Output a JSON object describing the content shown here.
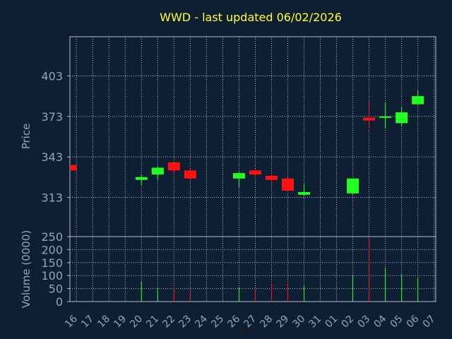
{
  "colors": {
    "background": "#0f1f33",
    "panel_border": "#b4bcc4",
    "grid": "#b4bcc4",
    "text": "#8fa6bd",
    "title": "#ffff33",
    "up": "#22ff22",
    "down": "#ff1111",
    "vol_up": "#22ff22",
    "vol_down": "#ff1111"
  },
  "chart_data": {
    "type": "candlestick",
    "title": "WWD - last updated 06/02/2026",
    "xlabel": "Day",
    "ylabel": "Price",
    "vol_ylabel": "Volume (0000)",
    "price_yticks": [
      403,
      373,
      343,
      313
    ],
    "price_ylim": [
      284,
      432
    ],
    "vol_yticks": [
      0,
      50,
      100,
      150,
      200,
      250
    ],
    "vol_ylim": [
      0,
      250
    ],
    "grid": true,
    "x_labels": [
      "16",
      "17",
      "18",
      "19",
      "20",
      "21",
      "22",
      "23",
      "24",
      "25",
      "26",
      "27",
      "28",
      "29",
      "30",
      "31",
      "01",
      "02",
      "03",
      "04",
      "05",
      "06",
      "07"
    ],
    "candles": [
      {
        "slot": 0,
        "open": 337,
        "high": 337,
        "low": 333,
        "close": 333,
        "volume": 0
      },
      {
        "slot": 4,
        "open": 326,
        "high": 330,
        "low": 322,
        "close": 328,
        "volume": 80
      },
      {
        "slot": 5,
        "open": 330,
        "high": 336,
        "low": 326,
        "close": 335,
        "volume": 50
      },
      {
        "slot": 6,
        "open": 339,
        "high": 339,
        "low": 331,
        "close": 333,
        "volume": 55
      },
      {
        "slot": 7,
        "open": 333,
        "high": 335,
        "low": 326,
        "close": 327,
        "volume": 45
      },
      {
        "slot": 10,
        "open": 327,
        "high": 332,
        "low": 320,
        "close": 331,
        "volume": 55
      },
      {
        "slot": 11,
        "open": 333,
        "high": 334,
        "low": 328,
        "close": 330,
        "volume": 45
      },
      {
        "slot": 12,
        "open": 329,
        "high": 330,
        "low": 323,
        "close": 326,
        "volume": 70
      },
      {
        "slot": 13,
        "open": 327,
        "high": 328,
        "low": 317,
        "close": 318,
        "volume": 70
      },
      {
        "slot": 14,
        "open": 315,
        "high": 323,
        "low": 314,
        "close": 317,
        "volume": 60
      },
      {
        "slot": 17,
        "open": 316,
        "high": 327,
        "low": 315,
        "close": 327,
        "volume": 100
      },
      {
        "slot": 18,
        "open": 372,
        "high": 384,
        "low": 364,
        "close": 370,
        "volume": 240
      },
      {
        "slot": 19,
        "open": 372,
        "high": 383,
        "low": 364,
        "close": 373,
        "volume": 130
      },
      {
        "slot": 20,
        "open": 368,
        "high": 380,
        "low": 366,
        "close": 376,
        "volume": 105
      },
      {
        "slot": 21,
        "open": 382,
        "high": 392,
        "low": 382,
        "close": 388,
        "volume": 90
      }
    ]
  }
}
